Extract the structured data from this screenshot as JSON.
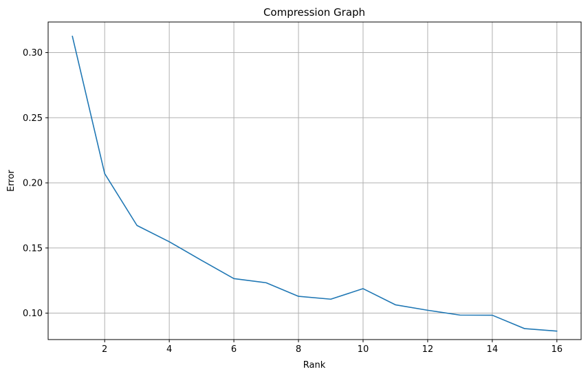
{
  "chart_data": {
    "type": "line",
    "title": "Compression Graph",
    "xlabel": "Rank",
    "ylabel": "Error",
    "xlim": [
      0.25,
      16.75
    ],
    "ylim": [
      0.0797,
      0.3235
    ],
    "xticks": [
      2,
      4,
      6,
      8,
      10,
      12,
      14,
      16
    ],
    "xtick_labels": [
      "2",
      "4",
      "6",
      "8",
      "10",
      "12",
      "14",
      "16"
    ],
    "yticks": [
      0.1,
      0.15,
      0.2,
      0.25,
      0.3
    ],
    "ytick_labels": [
      "0.10",
      "0.15",
      "0.20",
      "0.25",
      "0.30"
    ],
    "grid": true,
    "series": [
      {
        "color": "#1f77b4",
        "x": [
          1,
          2,
          3,
          4,
          5,
          6,
          7,
          8,
          9,
          10,
          11,
          12,
          13,
          14,
          15,
          16
        ],
        "values": [
          0.3126,
          0.2071,
          0.1673,
          0.1548,
          0.1405,
          0.1265,
          0.1233,
          0.1129,
          0.1107,
          0.1188,
          0.1064,
          0.1022,
          0.0985,
          0.0984,
          0.0881,
          0.0862
        ]
      }
    ]
  }
}
